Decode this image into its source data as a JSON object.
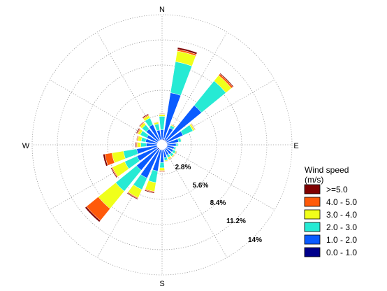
{
  "chart_data": {
    "type": "wind-rose",
    "directions": [
      "N",
      "E",
      "S",
      "W"
    ],
    "ring_labels": [
      "2.8%",
      "5.6%",
      "8.4%",
      "11.2%",
      "14%"
    ],
    "ring_values": [
      2.8,
      5.6,
      8.4,
      11.2,
      14
    ],
    "max_radius_value": 14,
    "sector_count": 24,
    "legend": {
      "title_line1": "Wind speed",
      "title_line2": "(m/s)"
    },
    "bins": [
      {
        "label": "0.0 - 1.0",
        "color": "#00008b"
      },
      {
        "label": "1.0 - 2.0",
        "color": "#0a5bff"
      },
      {
        "label": "2.0 - 3.0",
        "color": "#26ead4"
      },
      {
        "label": "3.0 - 4.0",
        "color": "#f0ff1a"
      },
      {
        "label": "4.0 - 5.0",
        "color": "#ff5a0a"
      },
      {
        "label": ">=5.0",
        "color": "#800000"
      }
    ],
    "series": [
      {
        "direction_deg": 0,
        "values": [
          0.1,
          1.1,
          1.5,
          0.2,
          0.05,
          0.05
        ]
      },
      {
        "direction_deg": 15,
        "values": [
          0.2,
          5.2,
          3.5,
          1.2,
          0.2,
          0.2
        ]
      },
      {
        "direction_deg": 30,
        "values": [
          0.1,
          1.5,
          0.3,
          0.1,
          0.0,
          0.05
        ]
      },
      {
        "direction_deg": 45,
        "values": [
          0.2,
          5.0,
          3.5,
          0.8,
          0.2,
          0.1
        ]
      },
      {
        "direction_deg": 60,
        "values": [
          0.1,
          2.0,
          1.2,
          0.2,
          0.05,
          0.05
        ]
      },
      {
        "direction_deg": 75,
        "values": [
          0.1,
          1.3,
          0.3,
          0.05,
          0.0,
          0.0
        ]
      },
      {
        "direction_deg": 90,
        "values": [
          0.1,
          1.0,
          0.2,
          0.05,
          0.0,
          0.0
        ]
      },
      {
        "direction_deg": 105,
        "values": [
          0.1,
          0.8,
          0.2,
          0.05,
          0.0,
          0.0
        ]
      },
      {
        "direction_deg": 120,
        "values": [
          0.1,
          0.8,
          0.3,
          0.1,
          0.0,
          0.05
        ]
      },
      {
        "direction_deg": 135,
        "values": [
          0.1,
          0.8,
          0.3,
          0.1,
          0.05,
          0.0
        ]
      },
      {
        "direction_deg": 150,
        "values": [
          0.1,
          0.7,
          0.3,
          0.2,
          0.05,
          0.05
        ]
      },
      {
        "direction_deg": 165,
        "values": [
          0.1,
          0.9,
          0.3,
          0.1,
          0.05,
          0.0
        ]
      },
      {
        "direction_deg": 180,
        "values": [
          0.1,
          1.4,
          0.6,
          0.3,
          0.1,
          0.05
        ]
      },
      {
        "direction_deg": 195,
        "values": [
          0.1,
          2.4,
          1.3,
          1.0,
          0.1,
          0.1
        ]
      },
      {
        "direction_deg": 210,
        "values": [
          0.1,
          3.5,
          1.4,
          1.0,
          0.1,
          0.1
        ]
      },
      {
        "direction_deg": 225,
        "values": [
          0.2,
          3.0,
          3.0,
          2.5,
          1.7,
          0.2
        ]
      },
      {
        "direction_deg": 240,
        "values": [
          0.1,
          2.5,
          1.5,
          1.5,
          0.1,
          0.1
        ]
      },
      {
        "direction_deg": 255,
        "values": [
          0.1,
          2.3,
          1.5,
          1.3,
          0.8,
          0.2
        ]
      },
      {
        "direction_deg": 270,
        "values": [
          0.1,
          1.2,
          0.6,
          0.4,
          0.1,
          0.1
        ]
      },
      {
        "direction_deg": 285,
        "values": [
          0.1,
          1.3,
          0.5,
          0.4,
          0.1,
          0.05
        ]
      },
      {
        "direction_deg": 300,
        "values": [
          0.1,
          1.3,
          0.8,
          0.3,
          0.1,
          0.1
        ]
      },
      {
        "direction_deg": 315,
        "values": [
          0.1,
          1.7,
          0.6,
          0.3,
          0.1,
          0.05
        ]
      },
      {
        "direction_deg": 330,
        "values": [
          0.1,
          1.9,
          0.8,
          0.3,
          0.1,
          0.1
        ]
      },
      {
        "direction_deg": 345,
        "values": [
          0.1,
          1.1,
          0.7,
          0.2,
          0.05,
          0.0
        ]
      }
    ]
  }
}
